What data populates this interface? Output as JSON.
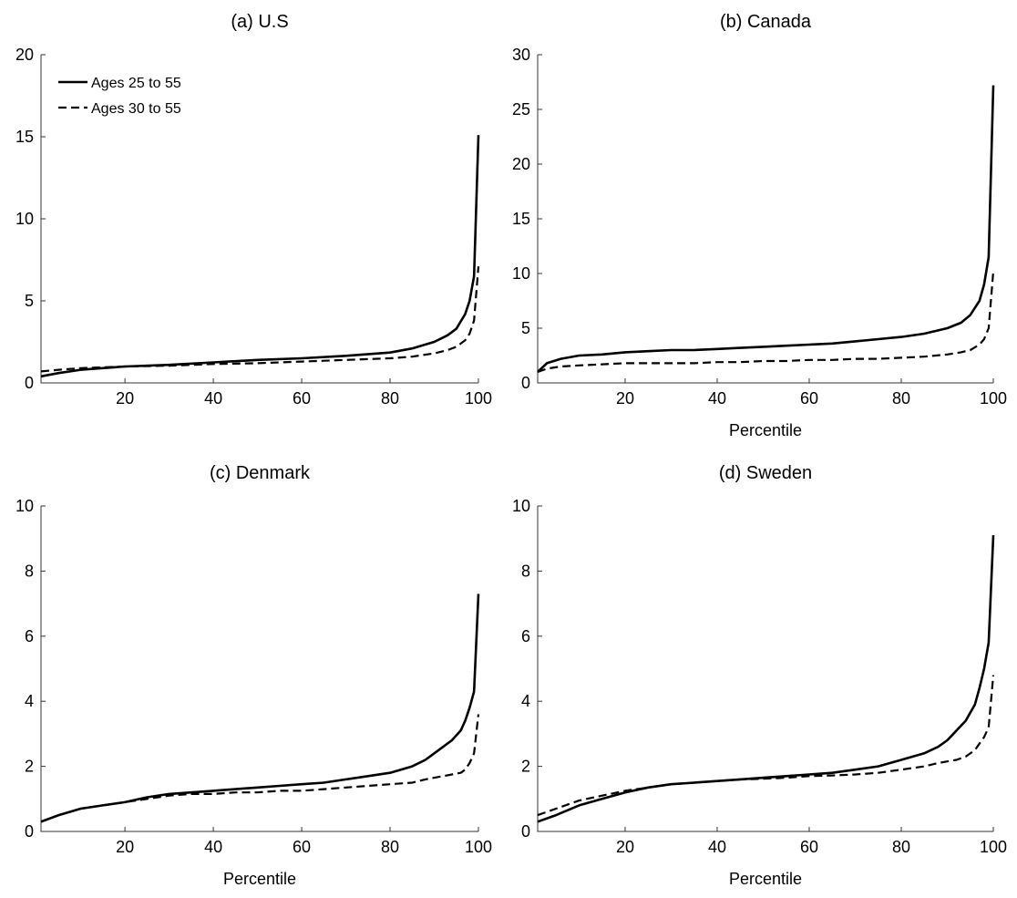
{
  "legend": {
    "entries": [
      {
        "label": "Ages 25 to 55",
        "style": "solid"
      },
      {
        "label": "Ages 30 to 55",
        "style": "dashed"
      }
    ],
    "placement": "top-left of panel (a)"
  },
  "chart_data": [
    {
      "type": "line",
      "title": "(a) U.S",
      "xlabel": "",
      "ylabel": "",
      "xlim": [
        1,
        100
      ],
      "ylim": [
        0,
        20
      ],
      "xticks": [
        20,
        40,
        60,
        80,
        100
      ],
      "yticks": [
        0,
        5,
        10,
        15,
        20
      ],
      "grid": false,
      "series": [
        {
          "name": "Ages 25 to 55",
          "style": "solid",
          "x": [
            1,
            5,
            10,
            20,
            30,
            40,
            50,
            60,
            70,
            80,
            85,
            90,
            93,
            95,
            97,
            98,
            99,
            100
          ],
          "y": [
            0.4,
            0.6,
            0.8,
            1.0,
            1.1,
            1.25,
            1.4,
            1.5,
            1.65,
            1.85,
            2.1,
            2.5,
            2.9,
            3.3,
            4.2,
            5.0,
            6.5,
            15.1
          ]
        },
        {
          "name": "Ages 30 to 55",
          "style": "dashed",
          "x": [
            1,
            5,
            10,
            20,
            30,
            40,
            50,
            60,
            70,
            80,
            85,
            90,
            93,
            95,
            97,
            98,
            99,
            100
          ],
          "y": [
            0.7,
            0.8,
            0.9,
            1.0,
            1.05,
            1.15,
            1.2,
            1.3,
            1.4,
            1.5,
            1.6,
            1.8,
            2.0,
            2.2,
            2.6,
            3.0,
            3.8,
            7.1
          ]
        }
      ]
    },
    {
      "type": "line",
      "title": "(b) Canada",
      "xlabel": "Percentile",
      "ylabel": "",
      "xlim": [
        1,
        100
      ],
      "ylim": [
        0,
        30
      ],
      "xticks": [
        20,
        40,
        60,
        80,
        100
      ],
      "yticks": [
        0,
        5,
        10,
        15,
        20,
        25,
        30
      ],
      "grid": false,
      "series": [
        {
          "name": "Ages 25 to 55",
          "style": "solid",
          "x": [
            1,
            3,
            6,
            10,
            15,
            20,
            25,
            30,
            35,
            40,
            45,
            50,
            55,
            60,
            65,
            70,
            75,
            80,
            85,
            90,
            93,
            95,
            97,
            98,
            99,
            100
          ],
          "y": [
            1.0,
            1.8,
            2.2,
            2.5,
            2.6,
            2.8,
            2.9,
            3.0,
            3.0,
            3.1,
            3.2,
            3.3,
            3.4,
            3.5,
            3.6,
            3.8,
            4.0,
            4.2,
            4.5,
            5.0,
            5.5,
            6.2,
            7.5,
            9.0,
            11.5,
            27.2
          ]
        },
        {
          "name": "Ages 30 to 55",
          "style": "dashed",
          "x": [
            1,
            3,
            6,
            10,
            15,
            20,
            25,
            30,
            35,
            40,
            45,
            50,
            55,
            60,
            65,
            70,
            75,
            80,
            85,
            90,
            93,
            95,
            97,
            98,
            99,
            100
          ],
          "y": [
            1.0,
            1.3,
            1.5,
            1.6,
            1.7,
            1.8,
            1.8,
            1.8,
            1.8,
            1.9,
            1.9,
            2.0,
            2.0,
            2.1,
            2.1,
            2.2,
            2.2,
            2.3,
            2.4,
            2.6,
            2.8,
            3.0,
            3.5,
            4.0,
            5.0,
            10.2
          ]
        }
      ]
    },
    {
      "type": "line",
      "title": "(c) Denmark",
      "xlabel": "Percentile",
      "ylabel": "",
      "xlim": [
        1,
        100
      ],
      "ylim": [
        0,
        10
      ],
      "xticks": [
        20,
        40,
        60,
        80,
        100
      ],
      "yticks": [
        0,
        2,
        4,
        6,
        8,
        10
      ],
      "grid": false,
      "series": [
        {
          "name": "Ages 25 to 55",
          "style": "solid",
          "x": [
            1,
            5,
            10,
            15,
            20,
            25,
            30,
            35,
            40,
            45,
            50,
            55,
            60,
            65,
            70,
            75,
            80,
            85,
            88,
            90,
            92,
            94,
            96,
            97,
            98,
            99,
            100
          ],
          "y": [
            0.3,
            0.5,
            0.7,
            0.8,
            0.9,
            1.05,
            1.15,
            1.2,
            1.25,
            1.3,
            1.35,
            1.4,
            1.45,
            1.5,
            1.6,
            1.7,
            1.8,
            2.0,
            2.2,
            2.4,
            2.6,
            2.8,
            3.1,
            3.4,
            3.8,
            4.3,
            7.3
          ]
        },
        {
          "name": "Ages 30 to 55",
          "style": "dashed",
          "x": [
            1,
            5,
            10,
            15,
            20,
            25,
            30,
            35,
            40,
            45,
            50,
            55,
            60,
            65,
            70,
            75,
            80,
            85,
            88,
            90,
            92,
            94,
            96,
            97,
            98,
            99,
            100
          ],
          "y": [
            0.3,
            0.5,
            0.7,
            0.8,
            0.9,
            1.0,
            1.1,
            1.15,
            1.15,
            1.2,
            1.2,
            1.25,
            1.25,
            1.3,
            1.35,
            1.4,
            1.45,
            1.5,
            1.6,
            1.65,
            1.7,
            1.75,
            1.8,
            1.9,
            2.1,
            2.4,
            3.6
          ]
        }
      ]
    },
    {
      "type": "line",
      "title": "(d) Sweden",
      "xlabel": "Percentile",
      "ylabel": "",
      "xlim": [
        1,
        100
      ],
      "ylim": [
        0,
        10
      ],
      "xticks": [
        20,
        40,
        60,
        80,
        100
      ],
      "yticks": [
        0,
        2,
        4,
        6,
        8,
        10
      ],
      "grid": false,
      "series": [
        {
          "name": "Ages 25 to 55",
          "style": "solid",
          "x": [
            1,
            5,
            10,
            15,
            20,
            25,
            30,
            35,
            40,
            45,
            50,
            55,
            60,
            65,
            70,
            75,
            80,
            85,
            88,
            90,
            92,
            94,
            96,
            97,
            98,
            99,
            100
          ],
          "y": [
            0.3,
            0.5,
            0.8,
            1.0,
            1.2,
            1.35,
            1.45,
            1.5,
            1.55,
            1.6,
            1.65,
            1.7,
            1.75,
            1.8,
            1.9,
            2.0,
            2.2,
            2.4,
            2.6,
            2.8,
            3.1,
            3.4,
            3.9,
            4.4,
            5.0,
            5.8,
            9.1
          ]
        },
        {
          "name": "Ages 30 to 55",
          "style": "dashed",
          "x": [
            1,
            5,
            10,
            15,
            20,
            25,
            30,
            35,
            40,
            45,
            50,
            55,
            60,
            65,
            70,
            75,
            80,
            85,
            88,
            90,
            92,
            94,
            96,
            97,
            98,
            99,
            100
          ],
          "y": [
            0.5,
            0.7,
            0.95,
            1.1,
            1.25,
            1.35,
            1.45,
            1.5,
            1.55,
            1.6,
            1.62,
            1.65,
            1.7,
            1.72,
            1.75,
            1.8,
            1.9,
            2.0,
            2.1,
            2.15,
            2.2,
            2.3,
            2.5,
            2.7,
            2.9,
            3.2,
            4.8
          ]
        }
      ]
    }
  ]
}
